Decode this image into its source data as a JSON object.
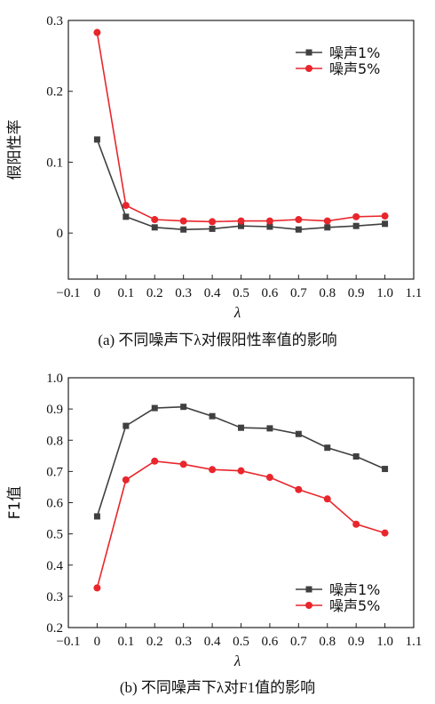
{
  "chart_data": [
    {
      "type": "line",
      "caption": "(a) 不同噪声下λ对假阳性率值的影响",
      "xlabel": "λ",
      "ylabel": "假阳性率",
      "xlim": [
        -0.1,
        1.1
      ],
      "ylim": [
        -0.065,
        0.3
      ],
      "xticks": [
        "−0.1",
        "0",
        "0.1",
        "0.2",
        "0.3",
        "0.4",
        "0.5",
        "0.6",
        "0.7",
        "0.8",
        "0.9",
        "1.0",
        "1.1"
      ],
      "xtick_values": [
        -0.1,
        0,
        0.1,
        0.2,
        0.3,
        0.4,
        0.5,
        0.6,
        0.7,
        0.8,
        0.9,
        1.0,
        1.1
      ],
      "yticks": [
        "0",
        "0.1",
        "0.2",
        "0.3"
      ],
      "ytick_values": [
        0,
        0.1,
        0.2,
        0.3
      ],
      "legend_position": "top-right",
      "x": [
        0,
        0.1,
        0.2,
        0.3,
        0.4,
        0.5,
        0.6,
        0.7,
        0.8,
        0.9,
        1.0
      ],
      "series": [
        {
          "name": "噪声1%",
          "color": "#404040",
          "marker": "square",
          "values": [
            0.132,
            0.023,
            0.008,
            0.005,
            0.006,
            0.01,
            0.009,
            0.005,
            0.008,
            0.01,
            0.013
          ]
        },
        {
          "name": "噪声5%",
          "color": "#e8262c",
          "marker": "circle",
          "values": [
            0.283,
            0.039,
            0.019,
            0.017,
            0.016,
            0.017,
            0.017,
            0.019,
            0.017,
            0.023,
            0.024
          ]
        }
      ]
    },
    {
      "type": "line",
      "caption": "(b) 不同噪声下λ对F1值的影响",
      "xlabel": "λ",
      "ylabel": "F1值",
      "xlim": [
        -0.1,
        1.1
      ],
      "ylim": [
        0.2,
        1.0
      ],
      "xticks": [
        "−0.1",
        "0",
        "0.1",
        "0.2",
        "0.3",
        "0.4",
        "0.5",
        "0.6",
        "0.7",
        "0.8",
        "0.9",
        "1.0",
        "1.1"
      ],
      "xtick_values": [
        -0.1,
        0,
        0.1,
        0.2,
        0.3,
        0.4,
        0.5,
        0.6,
        0.7,
        0.8,
        0.9,
        1.0,
        1.1
      ],
      "yticks": [
        "0.2",
        "0.3",
        "0.4",
        "0.5",
        "0.6",
        "0.7",
        "0.8",
        "0.9",
        "1.0"
      ],
      "ytick_values": [
        0.2,
        0.3,
        0.4,
        0.5,
        0.6,
        0.7,
        0.8,
        0.9,
        1.0
      ],
      "legend_position": "bottom-right",
      "x": [
        0,
        0.1,
        0.2,
        0.3,
        0.4,
        0.5,
        0.6,
        0.7,
        0.8,
        0.9,
        1.0
      ],
      "series": [
        {
          "name": "噪声1%",
          "color": "#404040",
          "marker": "square",
          "values": [
            0.556,
            0.846,
            0.903,
            0.907,
            0.877,
            0.84,
            0.838,
            0.82,
            0.776,
            0.748,
            0.708
          ]
        },
        {
          "name": "噪声5%",
          "color": "#e8262c",
          "marker": "circle",
          "values": [
            0.327,
            0.673,
            0.733,
            0.723,
            0.706,
            0.702,
            0.681,
            0.642,
            0.612,
            0.531,
            0.503
          ]
        }
      ]
    }
  ]
}
